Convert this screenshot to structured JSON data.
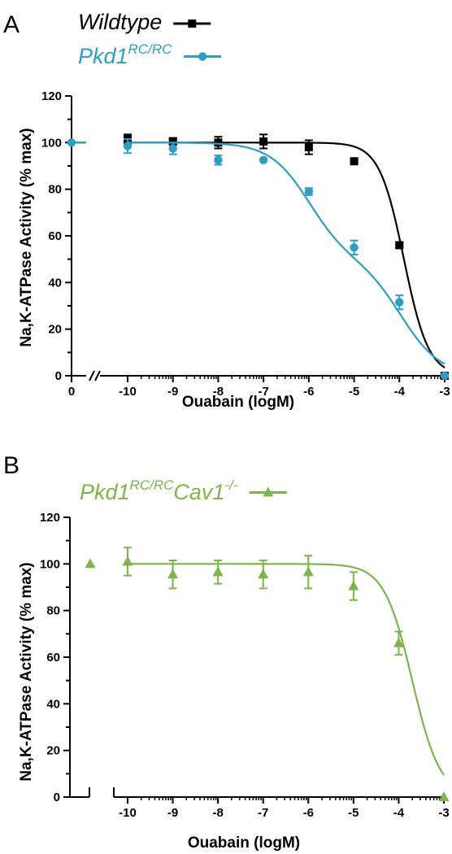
{
  "chart_data": [
    {
      "panel": "A",
      "type": "line",
      "xlabel": "Ouabain (logM)",
      "ylabel": "Na,K-ATPase Activity (% max)",
      "ylim": [
        0,
        120
      ],
      "yticks": [
        "0",
        "20",
        "40",
        "60",
        "80",
        "100",
        "120"
      ],
      "xticks_left": [
        "0"
      ],
      "xticks_main": [
        "-10",
        "-9",
        "-8",
        "-7",
        "-6",
        "-5",
        "-4",
        "-3"
      ],
      "grid": false,
      "legend_position": "top-left",
      "series": [
        {
          "name": "Wildtype",
          "name_sup": "",
          "color": "#000000",
          "marker": "square",
          "baseline_value": 100,
          "x": [
            -10,
            -9,
            -8,
            -7,
            -6,
            -5,
            -4,
            -3
          ],
          "y": [
            101.5,
            100.5,
            100,
            100.5,
            98,
            92,
            56,
            0
          ],
          "err": [
            2,
            1.5,
            2.5,
            3,
            3,
            1,
            1,
            0
          ],
          "fit": {
            "kind": "single",
            "top": 100,
            "bottom": 0,
            "logIC50": -3.9,
            "hill": 1.6
          }
        },
        {
          "name": "Pkd1",
          "name_sup": "RC/RC",
          "color": "#2b9fc6",
          "marker": "circle",
          "baseline_value": 100,
          "x": [
            -10,
            -9,
            -8,
            -7,
            -6,
            -5,
            -4,
            -3
          ],
          "y": [
            98.5,
            97.5,
            92.5,
            92.5,
            79,
            55,
            31.5,
            0
          ],
          "err": [
            3,
            2.5,
            2,
            0,
            1.5,
            3,
            3,
            0
          ],
          "fit": {
            "kind": "biphasic",
            "top": 100,
            "bottom": 0,
            "frac": 0.5,
            "logIC50_1": -6.0,
            "logIC50_2": -3.95,
            "hill": 1.0
          }
        }
      ]
    },
    {
      "panel": "B",
      "type": "line",
      "xlabel": "Ouabain (logM)",
      "ylabel": "Na,K-ATPase Activity (% max)",
      "ylim": [
        0,
        120
      ],
      "yticks": [
        "0",
        "20",
        "40",
        "60",
        "80",
        "100",
        "120"
      ],
      "xticks_main": [
        "-10",
        "-9",
        "-8",
        "-7",
        "-6",
        "-5",
        "-4",
        "-3"
      ],
      "grid": false,
      "legend_position": "top-left",
      "series": [
        {
          "name": "Pkd1",
          "name_sup": "RC/RC",
          "name2": "Cav1",
          "name2_sup": "-/-",
          "color": "#7ab648",
          "marker": "triangle",
          "baseline_value": 100,
          "x": [
            -10,
            -9,
            -8,
            -7,
            -6,
            -5,
            -4,
            -3
          ],
          "y": [
            101,
            95.5,
            96.5,
            95.5,
            96.5,
            90.5,
            66,
            0
          ],
          "err": [
            6,
            6,
            5,
            6,
            7,
            6,
            5,
            0
          ],
          "fit": {
            "kind": "single",
            "top": 100,
            "bottom": 0,
            "logIC50": -3.7,
            "hill": 1.4
          }
        }
      ]
    }
  ]
}
